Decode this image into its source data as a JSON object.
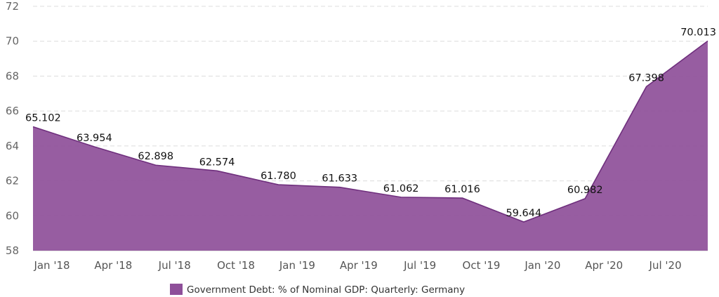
{
  "chart_data": {
    "type": "area",
    "title": "",
    "xlabel": "",
    "ylabel": "",
    "ylim": [
      58,
      72
    ],
    "yticks": [
      58,
      60,
      62,
      64,
      66,
      68,
      70,
      72
    ],
    "grid": true,
    "legend_position": "bottom-center",
    "color": "#8e4f99",
    "x_tick_labels": [
      "Jan '18",
      "Apr '18",
      "Jul '18",
      "Oct '18",
      "Jan '19",
      "Apr '19",
      "Jul '19",
      "Oct '19",
      "Jan '20",
      "Apr '20",
      "Jul '20"
    ],
    "series": [
      {
        "name": "Government Debt: % of Nominal GDP: Quarterly: Germany",
        "values": [
          65.102,
          63.954,
          62.898,
          62.574,
          61.78,
          61.633,
          61.062,
          61.016,
          59.644,
          60.982,
          67.398,
          70.013
        ],
        "value_labels": [
          "65.102",
          "63.954",
          "62.898",
          "62.574",
          "61.780",
          "61.633",
          "61.062",
          "61.016",
          "59.644",
          "60.982",
          "67.398",
          "70.013"
        ]
      }
    ]
  }
}
